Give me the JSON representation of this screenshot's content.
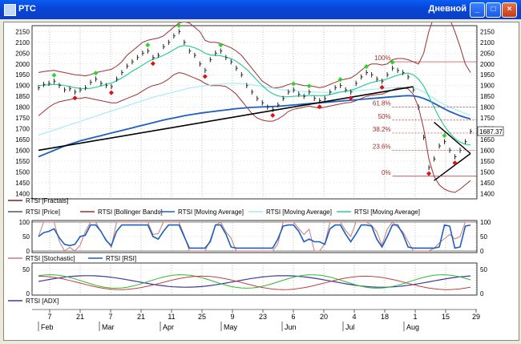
{
  "window": {
    "title": "РТС",
    "mode": "Дневной",
    "buttons": {
      "minimize": "_",
      "maximize": "□",
      "close": "×"
    }
  },
  "chart_data": [
    {
      "type": "line",
      "panel": "price",
      "yticks": [
        1400,
        1450,
        1500,
        1550,
        1600,
        1650,
        1700,
        1750,
        1800,
        1850,
        1900,
        1950,
        2000,
        2050,
        2100,
        2150
      ],
      "ylim": [
        1390,
        2170
      ],
      "last_price_label": "1687.37",
      "fib_levels": [
        {
          "label": "100%",
          "value": 2010
        },
        {
          "label": "61.8%",
          "value": 1800
        },
        {
          "label": "50%",
          "value": 1740
        },
        {
          "label": "38.2%",
          "value": 1680
        },
        {
          "label": "23.6%",
          "value": 1600
        },
        {
          "label": "0%",
          "value": 1480
        }
      ],
      "legend": [
        {
          "name": "RTSI [Fractals]",
          "color": "#8b1a1a"
        },
        {
          "name": "RTSI [Price]",
          "color": "#555555"
        },
        {
          "name": "RTSI [Bollinger Bands]",
          "color": "#a03030"
        },
        {
          "name": "RTSI [Moving Average]",
          "color": "#1f5fbf"
        },
        {
          "name": "RTSI [Moving Average]",
          "color": "#a6ecf5"
        },
        {
          "name": "RTSI [Moving Average]",
          "color": "#2ecc9a"
        }
      ],
      "series": {
        "price_close": [
          1890,
          1905,
          1910,
          1920,
          1900,
          1880,
          1885,
          1870,
          1880,
          1890,
          1915,
          1930,
          1910,
          1900,
          1895,
          1930,
          1960,
          1990,
          2010,
          2030,
          2050,
          2060,
          2030,
          2040,
          2080,
          2100,
          2130,
          2150,
          2100,
          2060,
          2040,
          2000,
          1970,
          2020,
          2050,
          2060,
          2030,
          2010,
          1980,
          1950,
          1900,
          1870,
          1840,
          1820,
          1800,
          1790,
          1810,
          1840,
          1870,
          1880,
          1860,
          1850,
          1870,
          1840,
          1830,
          1840,
          1870,
          1890,
          1900,
          1880,
          1870,
          1910,
          1940,
          1960,
          1950,
          1930,
          1920,
          1950,
          1980,
          1970,
          1960,
          1940,
          1880,
          1800,
          1660,
          1520,
          1560,
          1620,
          1640,
          1600,
          1570,
          1600,
          1640,
          1687
        ],
        "bb_upper": [
          1960,
          1965,
          1968,
          1970,
          1965,
          1960,
          1955,
          1950,
          1948,
          1945,
          1950,
          1960,
          1965,
          1970,
          1975,
          1990,
          2010,
          2040,
          2060,
          2080,
          2100,
          2110,
          2115,
          2120,
          2130,
          2150,
          2170,
          2190,
          2195,
          2190,
          2170,
          2150,
          2110,
          2100,
          2100,
          2095,
          2085,
          2075,
          2060,
          2040,
          2010,
          1980,
          1950,
          1920,
          1905,
          1890,
          1890,
          1895,
          1905,
          1910,
          1905,
          1900,
          1900,
          1895,
          1890,
          1895,
          1905,
          1915,
          1925,
          1930,
          1935,
          1950,
          1970,
          1990,
          2000,
          2000,
          1995,
          2000,
          2020,
          2025,
          2025,
          2020,
          2010,
          2000,
          2050,
          2150,
          2220,
          2260,
          2250,
          2210,
          2150,
          2080,
          2000,
          1960
        ],
        "bb_lower": [
          1760,
          1780,
          1800,
          1815,
          1825,
          1830,
          1835,
          1840,
          1840,
          1845,
          1840,
          1835,
          1830,
          1825,
          1820,
          1820,
          1830,
          1840,
          1850,
          1860,
          1875,
          1890,
          1900,
          1905,
          1915,
          1930,
          1950,
          1960,
          1955,
          1945,
          1935,
          1925,
          1910,
          1900,
          1900,
          1900,
          1895,
          1880,
          1860,
          1830,
          1800,
          1770,
          1750,
          1740,
          1735,
          1735,
          1745,
          1760,
          1780,
          1790,
          1795,
          1800,
          1805,
          1800,
          1795,
          1800,
          1805,
          1810,
          1815,
          1820,
          1822,
          1830,
          1840,
          1850,
          1855,
          1858,
          1860,
          1870,
          1880,
          1888,
          1890,
          1885,
          1860,
          1800,
          1700,
          1560,
          1480,
          1440,
          1420,
          1410,
          1405,
          1420,
          1440,
          1460
        ],
        "ma_long": [
          1570,
          1580,
          1590,
          1600,
          1610,
          1620,
          1628,
          1636,
          1644,
          1650,
          1656,
          1662,
          1668,
          1674,
          1680,
          1686,
          1692,
          1698,
          1704,
          1710,
          1716,
          1722,
          1728,
          1734,
          1740,
          1745,
          1750,
          1755,
          1760,
          1764,
          1768,
          1772,
          1775,
          1778,
          1781,
          1784,
          1787,
          1790,
          1793,
          1795,
          1797,
          1799,
          1800,
          1801,
          1802,
          1803,
          1804,
          1806,
          1808,
          1810,
          1812,
          1814,
          1816,
          1818,
          1820,
          1822,
          1824,
          1826,
          1828,
          1830,
          1832,
          1834,
          1836,
          1838,
          1840,
          1842,
          1844,
          1846,
          1848,
          1850,
          1852,
          1853,
          1852,
          1848,
          1840,
          1830,
          1818,
          1805,
          1792,
          1780,
          1770,
          1760,
          1752,
          1745
        ],
        "ma_mid": [
          1670,
          1678,
          1686,
          1694,
          1702,
          1710,
          1718,
          1726,
          1734,
          1742,
          1750,
          1758,
          1766,
          1774,
          1782,
          1790,
          1798,
          1806,
          1814,
          1822,
          1830,
          1838,
          1846,
          1852,
          1858,
          1864,
          1870,
          1876,
          1882,
          1888,
          1892,
          1896,
          1899,
          1902,
          1905,
          1907,
          1909,
          1910,
          1910,
          1909,
          1907,
          1904,
          1900,
          1896,
          1892,
          1888,
          1884,
          1880,
          1878,
          1876,
          1874,
          1872,
          1871,
          1870,
          1869,
          1868,
          1868,
          1869,
          1870,
          1872,
          1874,
          1876,
          1878,
          1880,
          1882,
          1884,
          1886,
          1888,
          1890,
          1892,
          1893,
          1893,
          1890,
          1882,
          1870,
          1855,
          1840,
          1825,
          1812,
          1800,
          1790,
          1780,
          1770,
          1762
        ],
        "ma_short": [
          1900,
          1902,
          1904,
          1905,
          1904,
          1900,
          1895,
          1890,
          1887,
          1885,
          1887,
          1892,
          1898,
          1905,
          1912,
          1922,
          1935,
          1950,
          1966,
          1980,
          1995,
          2010,
          2022,
          2030,
          2040,
          2052,
          2066,
          2080,
          2085,
          2082,
          2075,
          2065,
          2050,
          2042,
          2040,
          2038,
          2032,
          2025,
          2012,
          1995,
          1975,
          1950,
          1925,
          1900,
          1878,
          1862,
          1852,
          1848,
          1848,
          1850,
          1852,
          1852,
          1854,
          1854,
          1853,
          1854,
          1858,
          1864,
          1870,
          1874,
          1878,
          1886,
          1896,
          1906,
          1914,
          1920,
          1924,
          1930,
          1940,
          1948,
          1955,
          1958,
          1950,
          1930,
          1898,
          1850,
          1800,
          1752,
          1712,
          1680,
          1655,
          1638,
          1628,
          1625
        ]
      }
    },
    {
      "type": "line",
      "panel": "stochastic_rsi",
      "yticks": [
        0,
        50,
        100
      ],
      "legend": [
        {
          "name": "RTSI [Stochastic]",
          "color": "#c77b7b"
        },
        {
          "name": "RTSI [RSI]",
          "color": "#1f5fbf"
        }
      ]
    },
    {
      "type": "line",
      "panel": "adx",
      "yticks": [
        0,
        50
      ],
      "legend": [
        {
          "name": "RTSI [ADX]",
          "color": "#3a3aa0"
        }
      ]
    }
  ],
  "x_axis": {
    "days": [
      "7",
      "21",
      "7",
      "21",
      "11",
      "25",
      "9",
      "23",
      "6",
      "20",
      "4",
      "18",
      "1",
      "15",
      "29"
    ],
    "months": [
      "Feb",
      "Mar",
      "Apr",
      "May",
      "Jun",
      "Jul",
      "Aug"
    ]
  }
}
